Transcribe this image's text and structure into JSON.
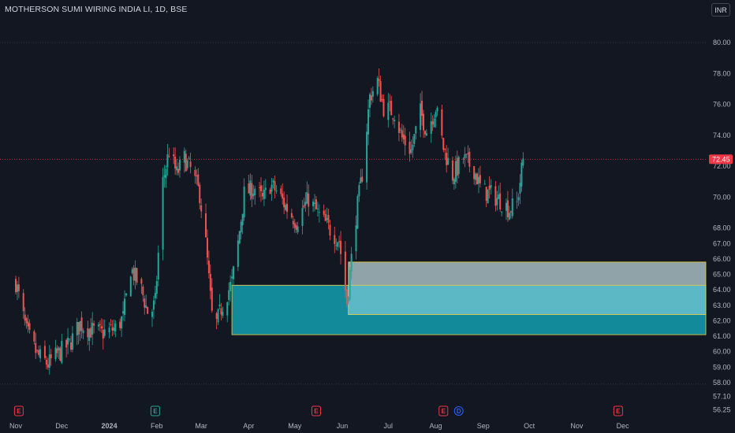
{
  "header": {
    "symbol_line": "MOTHERSON SUMI WIRING INDIA LI, 1D, BSE",
    "currency_button": "INR"
  },
  "colors": {
    "background": "#131722",
    "up": "#26a69a",
    "down": "#ef5350",
    "zone_upper": "#8fa3a8",
    "zone_lower": "#138a99",
    "zone_overlap": "#5bb8c4",
    "zone_border": "#f0d040",
    "price_line": "#f23645",
    "earnings": "#f23645",
    "dividend": "#2962ff",
    "earnings_green": "#26a69a"
  },
  "chart_data": {
    "type": "candlestick",
    "title": "MOTHERSON SUMI WIRING INDIA LI, 1D, BSE",
    "ylim": [
      56.25,
      80.6
    ],
    "y_axis_labels": [
      "80.00",
      "78.00",
      "76.00",
      "74.00",
      "72.00",
      "70.00",
      "68.00",
      "67.00",
      "66.00",
      "65.00",
      "64.00",
      "63.00",
      "62.00",
      "61.00",
      "60.00",
      "59.00",
      "58.00",
      "57.10",
      "56.25"
    ],
    "x_axis_labels": [
      "Nov",
      "Dec",
      "2024",
      "Feb",
      "Mar",
      "Apr",
      "May",
      "Jun",
      "Jul",
      "Aug",
      "Sep",
      "Oct",
      "Nov",
      "Dec"
    ],
    "x_range": [
      "2023-11-01",
      "2024-12-31"
    ],
    "last_price": 72.45,
    "last_price_label": "72.45",
    "grid": false,
    "reference_lines": [
      80.0,
      57.9
    ],
    "zones": [
      {
        "name": "demand-zone-lower",
        "from": "2024-03-21",
        "to": "2024-12-31",
        "low": 61.1,
        "high": 64.3
      },
      {
        "name": "demand-zone-upper",
        "from": "2024-06-05",
        "to": "2024-12-31",
        "low": 62.4,
        "high": 65.8
      }
    ],
    "events": [
      {
        "type": "E",
        "date": "2023-11-03",
        "color": "#f23645"
      },
      {
        "type": "E",
        "date": "2024-01-31",
        "color": "#26a69a"
      },
      {
        "type": "E",
        "date": "2024-05-15",
        "color": "#f23645"
      },
      {
        "type": "E",
        "date": "2024-08-06",
        "color": "#f23645"
      },
      {
        "type": "D",
        "date": "2024-08-16",
        "color": "#2962ff"
      },
      {
        "type": "E",
        "date": "2024-11-28",
        "color": "#f23645"
      }
    ],
    "anchors": [
      [
        "2023-11-01",
        64.5
      ],
      [
        "2023-11-08",
        61.3
      ],
      [
        "2023-11-15",
        59.8
      ],
      [
        "2023-11-22",
        59.2
      ],
      [
        "2023-11-28",
        59.8
      ],
      [
        "2023-12-06",
        60.5
      ],
      [
        "2023-12-13",
        61.8
      ],
      [
        "2023-12-20",
        61.4
      ],
      [
        "2023-12-27",
        61.2
      ],
      [
        "2024-01-05",
        61.5
      ],
      [
        "2024-01-10",
        62.2
      ],
      [
        "2024-01-15",
        65.4
      ],
      [
        "2024-01-22",
        64.0
      ],
      [
        "2024-01-27",
        62.2
      ],
      [
        "2024-01-31",
        63.2
      ],
      [
        "2024-02-05",
        71.0
      ],
      [
        "2024-02-09",
        73.0
      ],
      [
        "2024-02-14",
        71.5
      ],
      [
        "2024-02-19",
        72.5
      ],
      [
        "2024-02-24",
        71.6
      ],
      [
        "2024-02-29",
        70.2
      ],
      [
        "2024-03-04",
        67.0
      ],
      [
        "2024-03-09",
        61.2
      ],
      [
        "2024-03-14",
        62.8
      ],
      [
        "2024-03-21",
        64.5
      ],
      [
        "2024-03-25",
        67.0
      ],
      [
        "2024-03-29",
        70.2
      ],
      [
        "2024-04-05",
        70.6
      ],
      [
        "2024-04-10",
        69.8
      ],
      [
        "2024-04-15",
        70.8
      ],
      [
        "2024-04-20",
        70.3
      ],
      [
        "2024-04-25",
        69.4
      ],
      [
        "2024-05-02",
        68.4
      ],
      [
        "2024-05-10",
        69.9
      ],
      [
        "2024-05-17",
        68.8
      ],
      [
        "2024-05-24",
        67.9
      ],
      [
        "2024-05-30",
        67.2
      ],
      [
        "2024-06-04",
        63.2
      ],
      [
        "2024-06-10",
        68.8
      ],
      [
        "2024-06-14",
        71.5
      ],
      [
        "2024-06-19",
        76.5
      ],
      [
        "2024-06-24",
        77.5
      ],
      [
        "2024-06-28",
        75.8
      ],
      [
        "2024-07-05",
        75.5
      ],
      [
        "2024-07-10",
        73.8
      ],
      [
        "2024-07-16",
        73.0
      ],
      [
        "2024-07-22",
        75.5
      ],
      [
        "2024-07-26",
        74.3
      ],
      [
        "2024-08-01",
        75.8
      ],
      [
        "2024-08-06",
        73.2
      ],
      [
        "2024-08-12",
        71.4
      ],
      [
        "2024-08-19",
        72.5
      ],
      [
        "2024-08-26",
        71.8
      ],
      [
        "2024-08-31",
        70.4
      ],
      [
        "2024-09-06",
        70.2
      ],
      [
        "2024-09-12",
        69.8
      ],
      [
        "2024-09-18",
        69.2
      ],
      [
        "2024-09-23",
        69.6
      ],
      [
        "2024-09-27",
        72.45
      ]
    ]
  }
}
